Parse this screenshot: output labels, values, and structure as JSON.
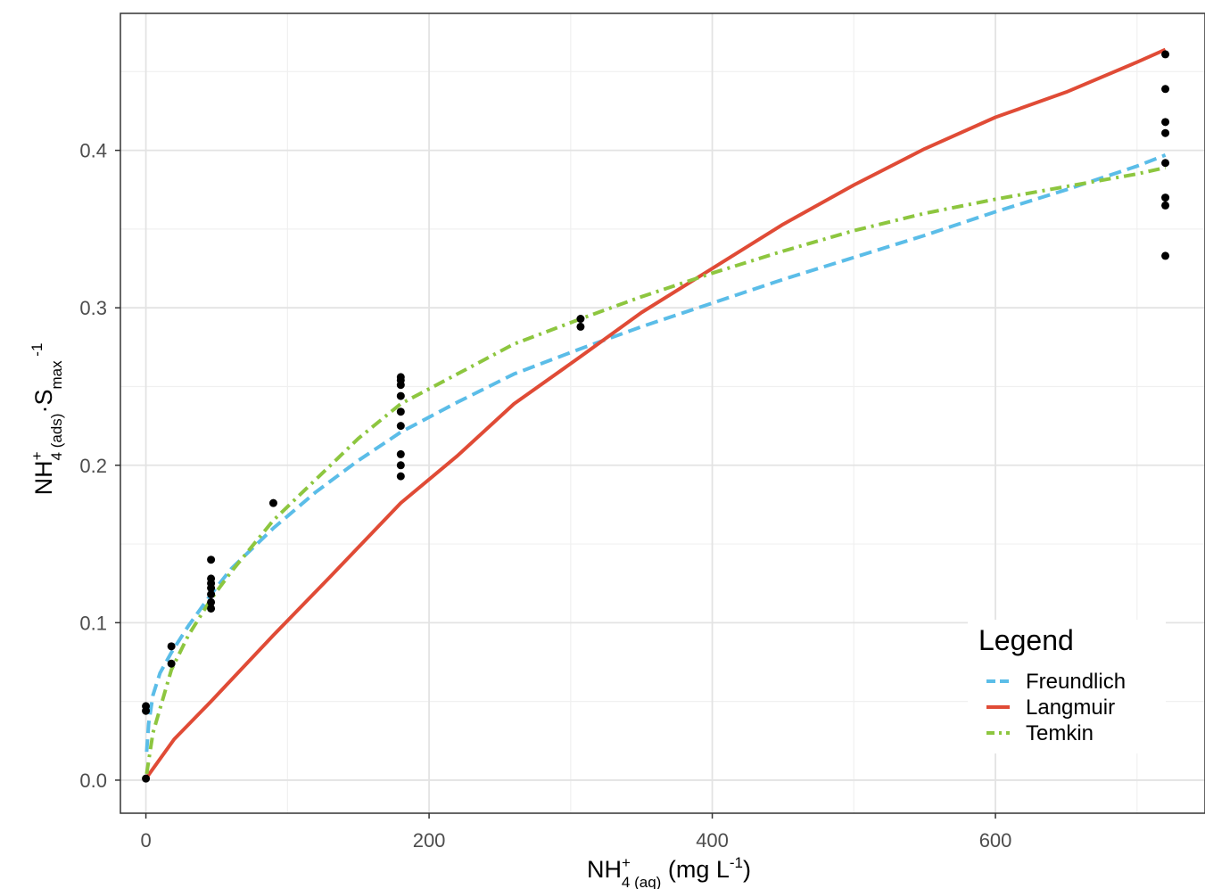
{
  "chart_data": {
    "type": "scatter",
    "xlabel": {
      "base": "NH",
      "sub1": "4",
      "sup1": "+",
      "sub2": " (aq)",
      "unit_pre": " (mg L",
      "unit_sup": "-1",
      "unit_post": ")"
    },
    "ylabel": {
      "base": "NH",
      "sub1": "4",
      "sup1": "+",
      "sub2": " (ads)",
      "mid": "·S",
      "sub3": "max",
      "sup3": " -1"
    },
    "xlim": [
      -18,
      748
    ],
    "ylim": [
      -0.021,
      0.487
    ],
    "xticks": [
      0,
      200,
      400,
      600
    ],
    "xtick_labels": [
      "0",
      "200",
      "400",
      "600"
    ],
    "yticks": [
      0.0,
      0.1,
      0.2,
      0.3,
      0.4
    ],
    "ytick_labels": [
      "0.0",
      "0.1",
      "0.2",
      "0.3",
      "0.4"
    ],
    "grid": true,
    "legend": {
      "title": "Legend",
      "position": "bottom-right",
      "entries": [
        "Freundlich",
        "Langmuir",
        "Temkin"
      ]
    },
    "points": [
      {
        "x": 0,
        "y": 0.001
      },
      {
        "x": 0,
        "y": 0.044
      },
      {
        "x": 0,
        "y": 0.047
      },
      {
        "x": 18,
        "y": 0.074
      },
      {
        "x": 18,
        "y": 0.085
      },
      {
        "x": 46,
        "y": 0.109
      },
      {
        "x": 46,
        "y": 0.113
      },
      {
        "x": 46,
        "y": 0.118
      },
      {
        "x": 46,
        "y": 0.122
      },
      {
        "x": 46,
        "y": 0.125
      },
      {
        "x": 46,
        "y": 0.128
      },
      {
        "x": 46,
        "y": 0.14
      },
      {
        "x": 90,
        "y": 0.176
      },
      {
        "x": 180,
        "y": 0.193
      },
      {
        "x": 180,
        "y": 0.2
      },
      {
        "x": 180,
        "y": 0.207
      },
      {
        "x": 180,
        "y": 0.225
      },
      {
        "x": 180,
        "y": 0.234
      },
      {
        "x": 180,
        "y": 0.244
      },
      {
        "x": 180,
        "y": 0.251
      },
      {
        "x": 180,
        "y": 0.254
      },
      {
        "x": 180,
        "y": 0.256
      },
      {
        "x": 307,
        "y": 0.288
      },
      {
        "x": 307,
        "y": 0.293
      },
      {
        "x": 720,
        "y": 0.333
      },
      {
        "x": 720,
        "y": 0.365
      },
      {
        "x": 720,
        "y": 0.37
      },
      {
        "x": 720,
        "y": 0.392
      },
      {
        "x": 720,
        "y": 0.411
      },
      {
        "x": 720,
        "y": 0.418
      },
      {
        "x": 720,
        "y": 0.439
      },
      {
        "x": 720,
        "y": 0.461
      }
    ],
    "series": [
      {
        "name": "Freundlich",
        "color": "#5bbde8",
        "style": "dashed",
        "x": [
          0.5,
          2,
          5,
          10,
          18,
          30,
          46,
          60,
          90,
          120,
          150,
          180,
          220,
          260,
          307,
          350,
          400,
          450,
          500,
          550,
          600,
          650,
          700,
          720
        ],
        "y": [
          0.018,
          0.036,
          0.054,
          0.068,
          0.081,
          0.098,
          0.118,
          0.134,
          0.16,
          0.183,
          0.203,
          0.221,
          0.24,
          0.258,
          0.274,
          0.288,
          0.303,
          0.318,
          0.332,
          0.346,
          0.361,
          0.375,
          0.39,
          0.397
        ]
      },
      {
        "name": "Langmuir",
        "color": "#e04b36",
        "style": "solid",
        "x": [
          0,
          20,
          46,
          90,
          130,
          180,
          220,
          260,
          307,
          350,
          400,
          450,
          500,
          550,
          600,
          650,
          700,
          720
        ],
        "y": [
          0.001,
          0.026,
          0.05,
          0.092,
          0.129,
          0.176,
          0.206,
          0.239,
          0.269,
          0.297,
          0.325,
          0.353,
          0.378,
          0.401,
          0.421,
          0.437,
          0.456,
          0.464
        ]
      },
      {
        "name": "Temkin",
        "color": "#8dc63f",
        "style": "dotdash",
        "x": [
          0.5,
          5,
          18,
          30,
          46,
          60,
          90,
          120,
          150,
          180,
          220,
          260,
          307,
          350,
          400,
          450,
          500,
          550,
          600,
          650,
          700,
          720
        ],
        "y": [
          0.004,
          0.03,
          0.07,
          0.092,
          0.115,
          0.132,
          0.165,
          0.191,
          0.217,
          0.239,
          0.258,
          0.277,
          0.293,
          0.307,
          0.322,
          0.336,
          0.349,
          0.36,
          0.369,
          0.377,
          0.385,
          0.389
        ]
      }
    ]
  }
}
